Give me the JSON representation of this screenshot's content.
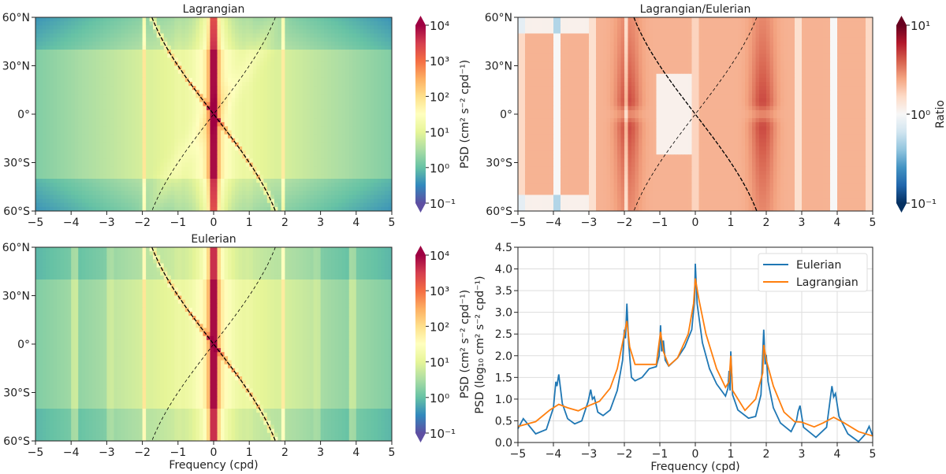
{
  "chart_data": [
    {
      "type": "heatmap",
      "title": "Lagrangian",
      "xlabel": "",
      "xlim": [
        -5,
        5
      ],
      "ylim": [
        -60,
        60
      ],
      "xticks": [
        "−5",
        "−4",
        "−3",
        "−2",
        "−1",
        "0",
        "1",
        "2",
        "3",
        "4",
        "5"
      ],
      "yticks": [
        "60°S",
        "30°S",
        "0°",
        "30°N",
        "60°N"
      ],
      "colorbar": {
        "label": "PSD (cm² s⁻² cpd⁻¹)",
        "scale": "log",
        "range": [
          0.1,
          10000
        ],
        "ticks": [
          "10⁻¹",
          "10⁰",
          "10¹",
          "10²",
          "10³",
          "10⁴"
        ],
        "colormap": "Spectral_r"
      },
      "overlay_curves": [
        "solid: f = −2 sin(lat)",
        "dashed: f = 2 sin(lat)"
      ]
    },
    {
      "type": "heatmap",
      "title": "Lagrangian/Eulerian",
      "xlabel": "",
      "xlim": [
        -5,
        5
      ],
      "ylim": [
        -60,
        60
      ],
      "xticks": [
        "−5",
        "−4",
        "−3",
        "−2",
        "−1",
        "0",
        "1",
        "2",
        "3",
        "4",
        "5"
      ],
      "yticks": [
        "60°S",
        "30°S",
        "0°",
        "30°N",
        "60°N"
      ],
      "colorbar": {
        "label": "Ratio",
        "scale": "log",
        "range": [
          0.1,
          10
        ],
        "ticks": [
          "10⁻¹",
          "10⁰",
          "10¹"
        ],
        "colormap": "RdBu_r"
      }
    },
    {
      "type": "heatmap",
      "title": "Eulerian",
      "xlabel": "Frequency (cpd)",
      "xlim": [
        -5,
        5
      ],
      "ylim": [
        -60,
        60
      ],
      "xticks": [
        "−5",
        "−4",
        "−3",
        "−2",
        "−1",
        "0",
        "1",
        "2",
        "3",
        "4",
        "5"
      ],
      "yticks": [
        "60°S",
        "30°S",
        "0°",
        "30°N",
        "60°N"
      ],
      "colorbar": {
        "label": "PSD (cm² s⁻² cpd⁻¹)",
        "scale": "log",
        "range": [
          0.1,
          10000
        ],
        "ticks": [
          "10⁻¹",
          "10⁰",
          "10¹",
          "10²",
          "10³",
          "10⁴"
        ],
        "colormap": "Spectral_r"
      }
    },
    {
      "type": "line",
      "title": "",
      "xlabel": "Frequency (cpd)",
      "ylabel": "PSD (log₁₀ cm² s⁻² cpd⁻¹)",
      "xlim": [
        -5,
        5
      ],
      "ylim": [
        0,
        4.5
      ],
      "grid": true,
      "legend": "top-right",
      "xticks": [
        "−5",
        "−4",
        "−3",
        "−2",
        "−1",
        "0",
        "1",
        "2",
        "3",
        "4",
        "5"
      ],
      "yticks": [
        "0.0",
        "0.5",
        "1.0",
        "1.5",
        "2.0",
        "2.5",
        "3.0",
        "3.5",
        "4.0",
        "4.5"
      ],
      "series": [
        {
          "name": "Eulerian",
          "color": "#1f77b4",
          "points": [
            [
              -5,
              0.32
            ],
            [
              -4.85,
              0.55
            ],
            [
              -4.75,
              0.45
            ],
            [
              -4.5,
              0.2
            ],
            [
              -4.2,
              0.3
            ],
            [
              -4,
              0.8
            ],
            [
              -3.93,
              1.4
            ],
            [
              -3.9,
              1.3
            ],
            [
              -3.85,
              1.57
            ],
            [
              -3.75,
              0.9
            ],
            [
              -3.6,
              0.55
            ],
            [
              -3.4,
              0.43
            ],
            [
              -3.2,
              0.5
            ],
            [
              -3.02,
              0.95
            ],
            [
              -2.95,
              1.22
            ],
            [
              -2.9,
              1.0
            ],
            [
              -2.85,
              1.05
            ],
            [
              -2.75,
              0.7
            ],
            [
              -2.6,
              0.62
            ],
            [
              -2.4,
              0.75
            ],
            [
              -2.2,
              1.2
            ],
            [
              -2.05,
              1.9
            ],
            [
              -2,
              2.6
            ],
            [
              -1.97,
              2.4
            ],
            [
              -1.93,
              3.2
            ],
            [
              -1.88,
              2.3
            ],
            [
              -1.8,
              1.5
            ],
            [
              -1.7,
              1.42
            ],
            [
              -1.5,
              1.5
            ],
            [
              -1.3,
              1.7
            ],
            [
              -1.1,
              1.75
            ],
            [
              -1.02,
              2.0
            ],
            [
              -0.98,
              2.7
            ],
            [
              -0.95,
              2.1
            ],
            [
              -0.9,
              2.35
            ],
            [
              -0.85,
              1.9
            ],
            [
              -0.75,
              1.76
            ],
            [
              -0.5,
              1.95
            ],
            [
              -0.3,
              2.2
            ],
            [
              -0.1,
              2.6
            ],
            [
              -0.02,
              3.3
            ],
            [
              0,
              4.12
            ],
            [
              0.05,
              3.2
            ],
            [
              0.2,
              2.3
            ],
            [
              0.4,
              1.7
            ],
            [
              0.6,
              1.35
            ],
            [
              0.85,
              1.07
            ],
            [
              0.92,
              1.25
            ],
            [
              0.95,
              1.65
            ],
            [
              0.98,
              1.2
            ],
            [
              1.0,
              2.1
            ],
            [
              1.05,
              1.1
            ],
            [
              1.2,
              0.75
            ],
            [
              1.5,
              0.56
            ],
            [
              1.7,
              0.6
            ],
            [
              1.85,
              1.1
            ],
            [
              1.93,
              2.6
            ],
            [
              1.97,
              1.8
            ],
            [
              2.0,
              2.02
            ],
            [
              2.05,
              1.4
            ],
            [
              2.2,
              0.8
            ],
            [
              2.4,
              0.45
            ],
            [
              2.7,
              0.25
            ],
            [
              2.85,
              0.5
            ],
            [
              2.9,
              0.72
            ],
            [
              2.95,
              0.85
            ],
            [
              3.0,
              0.6
            ],
            [
              3.05,
              0.35
            ],
            [
              3.4,
              0.12
            ],
            [
              3.7,
              0.35
            ],
            [
              3.85,
              1.3
            ],
            [
              3.9,
              1.05
            ],
            [
              3.95,
              1.13
            ],
            [
              4.05,
              0.6
            ],
            [
              4.3,
              0.2
            ],
            [
              4.6,
              0.02
            ],
            [
              4.8,
              0.2
            ],
            [
              4.9,
              0.37
            ],
            [
              5,
              0.15
            ]
          ]
        },
        {
          "name": "Lagrangian",
          "color": "#ff7f0e",
          "points": [
            [
              -5,
              0.37
            ],
            [
              -4.5,
              0.48
            ],
            [
              -4.1,
              0.75
            ],
            [
              -3.85,
              0.88
            ],
            [
              -3.6,
              0.8
            ],
            [
              -3.3,
              0.73
            ],
            [
              -3.0,
              0.85
            ],
            [
              -2.7,
              0.95
            ],
            [
              -2.4,
              1.25
            ],
            [
              -2.2,
              1.7
            ],
            [
              -2.05,
              2.3
            ],
            [
              -1.93,
              2.8
            ],
            [
              -1.85,
              2.2
            ],
            [
              -1.7,
              1.8
            ],
            [
              -1.4,
              1.8
            ],
            [
              -1.1,
              1.8
            ],
            [
              -0.98,
              2.55
            ],
            [
              -0.9,
              2.1
            ],
            [
              -0.75,
              1.77
            ],
            [
              -0.5,
              1.95
            ],
            [
              -0.2,
              2.5
            ],
            [
              -0.05,
              3.2
            ],
            [
              0,
              3.78
            ],
            [
              0.1,
              3.3
            ],
            [
              0.3,
              2.5
            ],
            [
              0.6,
              1.7
            ],
            [
              0.85,
              1.27
            ],
            [
              0.95,
              1.4
            ],
            [
              1.0,
              2.0
            ],
            [
              1.05,
              1.2
            ],
            [
              1.4,
              0.74
            ],
            [
              1.7,
              1.0
            ],
            [
              1.9,
              1.6
            ],
            [
              1.93,
              2.25
            ],
            [
              2.0,
              1.9
            ],
            [
              2.2,
              1.3
            ],
            [
              2.5,
              0.7
            ],
            [
              2.8,
              0.48
            ],
            [
              3.0,
              0.47
            ],
            [
              3.35,
              0.36
            ],
            [
              3.6,
              0.45
            ],
            [
              3.9,
              0.58
            ],
            [
              4.2,
              0.45
            ],
            [
              4.6,
              0.25
            ],
            [
              5,
              0.15
            ]
          ]
        }
      ]
    }
  ]
}
